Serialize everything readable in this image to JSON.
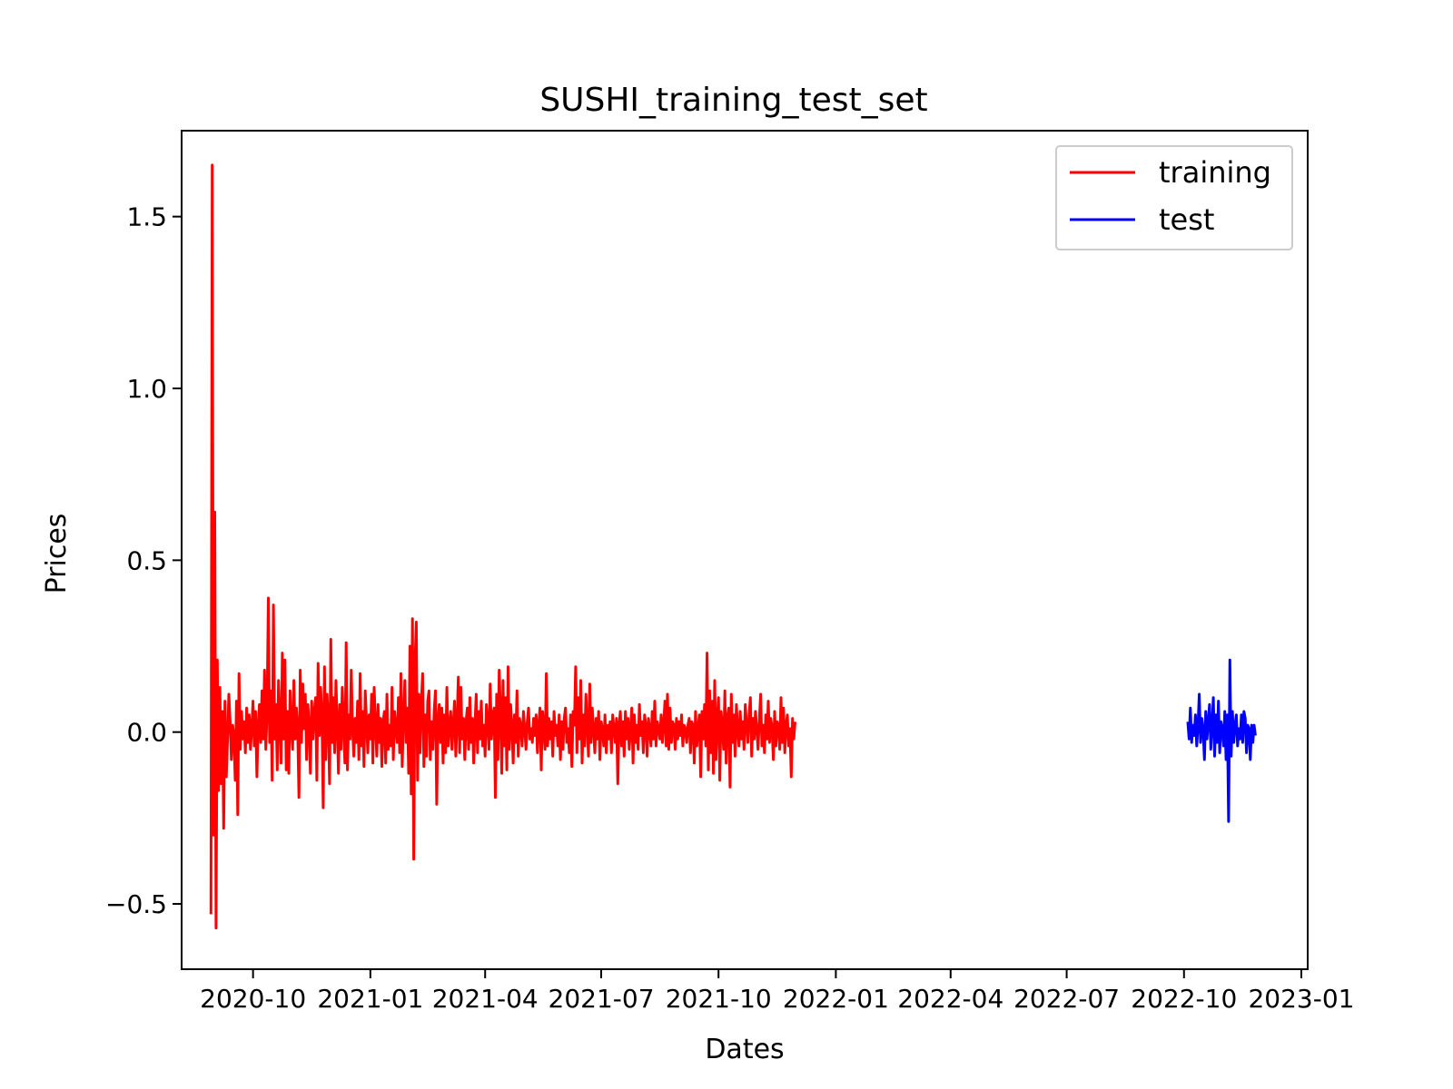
{
  "chart_data": {
    "type": "line",
    "title": "SUSHI_training_test_set",
    "xlabel": "Dates",
    "ylabel": "Prices",
    "xlim": [
      "2020-08-06",
      "2023-01-06"
    ],
    "ylim": [
      -0.69,
      1.75
    ],
    "x_ticks": [
      "2020-10",
      "2021-01",
      "2021-04",
      "2021-07",
      "2021-10",
      "2022-01",
      "2022-04",
      "2022-07",
      "2022-10",
      "2023-01"
    ],
    "y_ticks": [
      -0.5,
      0.0,
      0.5,
      1.0,
      1.5
    ],
    "y_tick_labels": [
      "−0.5",
      "0.0",
      "0.5",
      "1.0",
      "1.5"
    ],
    "grid": false,
    "legend": "upper-right",
    "series": [
      {
        "name": "training",
        "color": "#ff0000",
        "start": "2020-08-29",
        "step_days": 1,
        "values": [
          -0.53,
          1.65,
          -0.3,
          0.64,
          -0.57,
          0.21,
          -0.17,
          0.13,
          -0.15,
          0.06,
          -0.28,
          0.09,
          -0.13,
          -0.02,
          0.11,
          0.03,
          -0.08,
          0.02,
          -0.01,
          -0.14,
          0.09,
          -0.24,
          0.17,
          -0.05,
          0.06,
          -0.02,
          0.03,
          -0.06,
          0.07,
          -0.03,
          0.05,
          -0.05,
          0.01,
          0.09,
          -0.04,
          0.06,
          -0.13,
          0.02,
          0.08,
          -0.03,
          0.12,
          -0.02,
          0.18,
          -0.05,
          0.06,
          0.39,
          -0.03,
          0.12,
          -0.14,
          0.37,
          -0.02,
          0.08,
          -0.11,
          0.15,
          0.03,
          -0.09,
          0.23,
          -0.02,
          0.21,
          -0.11,
          0.06,
          -0.12,
          0.12,
          0.02,
          -0.05,
          0.15,
          -0.02,
          0.07,
          0.01,
          -0.19,
          0.18,
          -0.03,
          0.14,
          0.01,
          0.11,
          -0.08,
          0.08,
          0.02,
          -0.12,
          0.09,
          -0.02,
          0.06,
          0.1,
          -0.14,
          0.2,
          -0.01,
          0.13,
          0.05,
          -0.22,
          0.19,
          -0.08,
          0.11,
          0.04,
          -0.15,
          0.27,
          -0.03,
          0.1,
          -0.06,
          0.15,
          0.03,
          -0.12,
          0.08,
          -0.05,
          0.13,
          0.02,
          -0.09,
          0.26,
          -0.11,
          0.05,
          -0.02,
          0.18,
          0.01,
          -0.07,
          0.04,
          -0.03,
          0.09,
          -0.08,
          0.17,
          -0.04,
          0.06,
          -0.1,
          0.12,
          0.03,
          -0.06,
          0.05,
          -0.02,
          0.11,
          -0.09,
          0.13,
          0.02,
          -0.07,
          0.08,
          -0.03,
          0.04,
          -0.1,
          0.03,
          0.06,
          -0.09,
          0.11,
          -0.05,
          0.02,
          -0.04,
          0.13,
          -0.08,
          0.06,
          0.01,
          -0.03,
          0.1,
          -0.06,
          0.17,
          -0.1,
          0.04,
          0.15,
          -0.03,
          0.07,
          -0.12,
          0.25,
          -0.18,
          0.33,
          -0.37,
          0.2,
          0.32,
          -0.14,
          0.11,
          -0.06,
          0.09,
          0.17,
          -0.1,
          0.05,
          -0.07,
          0.09,
          0.12,
          -0.08,
          0.03,
          -0.05,
          0.06,
          0.12,
          -0.21,
          0.04,
          0.08,
          -0.03,
          0.07,
          -0.09,
          0.05,
          -0.06,
          0.13,
          -0.04,
          0.01,
          0.06,
          -0.05,
          0.02,
          0.09,
          -0.07,
          0.03,
          0.16,
          -0.06,
          0.13,
          -0.02,
          0.04,
          -0.08,
          0.03,
          0.07,
          -0.05,
          0.1,
          -0.03,
          0.04,
          -0.09,
          0.02,
          0.11,
          -0.06,
          0.06,
          -0.02,
          0.09,
          -0.04,
          0.02,
          -0.07,
          0.08,
          0.03,
          -0.05,
          0.14,
          -0.02,
          0.05,
          0.07,
          -0.19,
          0.11,
          -0.08,
          0.18,
          0.06,
          -0.12,
          0.15,
          -0.04,
          0.1,
          -0.11,
          0.19,
          -0.05,
          0.08,
          0.02,
          -0.09,
          0.05,
          -0.03,
          0.12,
          -0.07,
          0.04,
          0.02,
          -0.04,
          0.06,
          0.01,
          -0.05,
          0.03,
          0.07,
          -0.02,
          0.01,
          -0.03,
          0.04,
          -0.01,
          0.05,
          -0.06,
          0.02,
          0.07,
          -0.11,
          0.06,
          0.01,
          -0.05,
          0.17,
          -0.04,
          0.04,
          -0.02,
          0.03,
          -0.07,
          0.06,
          -0.01,
          0.02,
          -0.04,
          0.05,
          -0.08,
          0.03,
          -0.05,
          0.04,
          0.07,
          -0.03,
          0.01,
          -0.06,
          0.05,
          -0.1,
          0.06,
          0.02,
          0.19,
          -0.06,
          0.1,
          -0.02,
          0.15,
          -0.09,
          0.05,
          -0.04,
          0.11,
          0.02,
          -0.07,
          0.14,
          -0.03,
          0.07,
          0.01,
          -0.06,
          0.04,
          -0.02,
          0.06,
          -0.08,
          0.03,
          0.01,
          -0.04,
          0.05,
          -0.06,
          0.02,
          -0.02,
          0.03,
          -0.06,
          0.05,
          0.01,
          -0.03,
          0.04,
          -0.15,
          0.02,
          0.06,
          -0.04,
          0.03,
          -0.07,
          0.06,
          -0.02,
          0.04,
          -0.05,
          0.01,
          0.07,
          -0.09,
          0.05,
          -0.03,
          0.02,
          -0.05,
          0.08,
          -0.01,
          0.03,
          -0.06,
          0.05,
          0.02,
          -0.07,
          0.04,
          0.01,
          -0.04,
          0.06,
          -0.02,
          0.09,
          -0.04,
          0.03,
          0.01,
          -0.02,
          0.05,
          -0.03,
          0.02,
          0.09,
          -0.04,
          0.11,
          -0.05,
          0.07,
          -0.03,
          0.03,
          0.02,
          -0.05,
          0.04,
          -0.02,
          0.03,
          -0.01,
          0.05,
          -0.04,
          0.02,
          0.01,
          -0.03,
          0.02,
          0.04,
          -0.06,
          0.03,
          0.02,
          -0.09,
          0.06,
          -0.04,
          0.01,
          0.05,
          -0.13,
          0.06,
          -0.02,
          0.08,
          -0.04,
          0.23,
          -0.11,
          0.12,
          -0.06,
          0.09,
          -0.12,
          0.15,
          -0.08,
          0.04,
          0.1,
          -0.14,
          0.06,
          0.02,
          -0.05,
          0.12,
          -0.09,
          0.04,
          0.07,
          -0.16,
          0.11,
          -0.03,
          0.05,
          -0.07,
          0.08,
          0.01,
          -0.04,
          0.06,
          -0.02,
          0.03,
          -0.05,
          0.08,
          0.02,
          -0.03,
          0.05,
          0.1,
          -0.07,
          0.04,
          -0.02,
          0.06,
          0.01,
          -0.05,
          0.03,
          0.11,
          -0.04,
          0.02,
          -0.06,
          0.05,
          -0.02,
          0.09,
          -0.03,
          0.04,
          0.01,
          -0.08,
          0.06,
          -0.04,
          0.03,
          0.02,
          -0.05,
          0.1,
          -0.03,
          0.07,
          -0.06,
          0.02,
          0.05,
          -0.04,
          0.01,
          -0.13,
          0.04,
          -0.02,
          0.03
        ]
      },
      {
        "name": "test",
        "color": "#0000ff",
        "start": "2022-10-04",
        "step_days": 1,
        "values": [
          0.03,
          -0.02,
          0.07,
          -0.03,
          0.02,
          -0.01,
          0.05,
          -0.04,
          0.02,
          0.11,
          -0.03,
          0.04,
          0.01,
          -0.08,
          0.06,
          -0.02,
          0.03,
          0.08,
          -0.05,
          0.02,
          0.1,
          -0.07,
          0.05,
          -0.03,
          0.09,
          -0.06,
          0.03,
          0.01,
          -0.04,
          0.06,
          -0.08,
          0.05,
          -0.26,
          0.21,
          -0.07,
          0.06,
          -0.03,
          0.02,
          0.05,
          -0.04,
          0.01,
          -0.02,
          0.05,
          -0.03,
          0.06,
          0.04,
          -0.06,
          0.02,
          0.01,
          -0.08,
          0.02,
          -0.03,
          0.02,
          -0.01
        ]
      }
    ]
  }
}
